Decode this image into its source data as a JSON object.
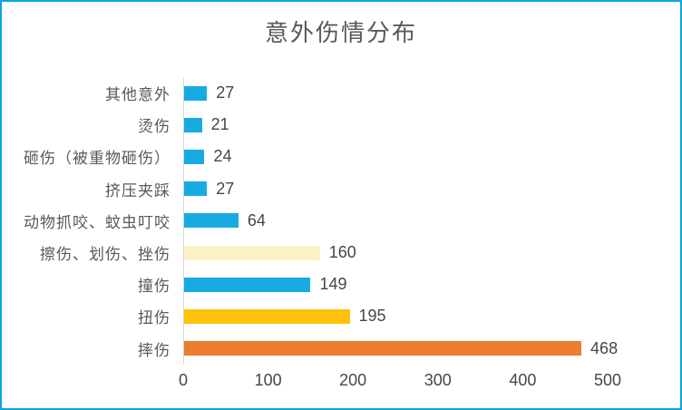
{
  "frame": {
    "border_color": "#0AA6DF",
    "background": "#FFFFFF"
  },
  "chart_data": {
    "type": "bar",
    "orientation": "horizontal",
    "category_order": "top-to-bottom",
    "title": "意外伤情分布",
    "categories": [
      "其他意外",
      "烫伤",
      "砸伤（被重物砸伤）",
      "挤压夹踩",
      "动物抓咬、蚊虫叮咬",
      "擦伤、划伤、挫伤",
      "撞伤",
      "扭伤",
      "摔伤"
    ],
    "values": [
      27,
      21,
      24,
      27,
      64,
      160,
      149,
      195,
      468
    ],
    "bar_colors": [
      "#18ABE2",
      "#18ABE2",
      "#18ABE2",
      "#18ABE2",
      "#18ABE2",
      "#FDF1C7",
      "#18ABE2",
      "#FFC10A",
      "#ED7D31"
    ],
    "xlim": [
      0,
      500
    ],
    "x_ticks": [
      0,
      100,
      200,
      300,
      400,
      500
    ],
    "xlabel": "",
    "ylabel": "",
    "data_labels": true,
    "grid": false,
    "legend": false,
    "axis_line_color": "#D6D6D6",
    "title_color": "#595959",
    "category_text_color": "#595959",
    "value_text_color": "#474747"
  }
}
